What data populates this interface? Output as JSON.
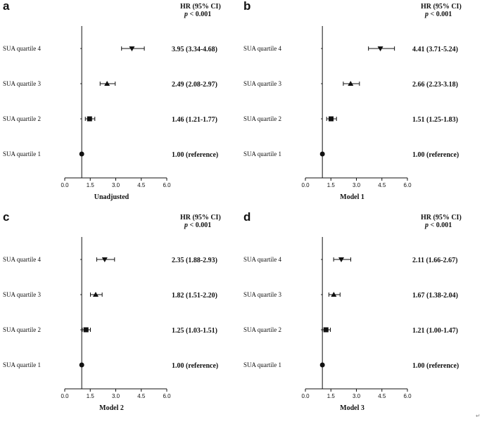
{
  "header": {
    "hr_label": "HR (95% CI)",
    "p_label": "p",
    "p_value": "< 0.001"
  },
  "rows": [
    "SUA quartile 4",
    "SUA quartile 3",
    "SUA quartile 2",
    "SUA quartile 1"
  ],
  "chart_data": [
    {
      "type": "forest",
      "panel": "a",
      "xlabel": "Unadjusted",
      "xlim": [
        0,
        6
      ],
      "xticks": [
        "0.0",
        "1.5",
        "3.0",
        "4.5",
        "6.0"
      ],
      "ref_line": 1.0,
      "rows": [
        {
          "label": "SUA quartile 4",
          "hr": 3.95,
          "lo": 3.34,
          "hi": 4.68,
          "marker": "triangle-down",
          "text": "3.95 (3.34-4.68)"
        },
        {
          "label": "SUA quartile 3",
          "hr": 2.49,
          "lo": 2.08,
          "hi": 2.97,
          "marker": "triangle-up",
          "text": "2.49 (2.08-2.97)"
        },
        {
          "label": "SUA quartile 2",
          "hr": 1.46,
          "lo": 1.21,
          "hi": 1.77,
          "marker": "square",
          "text": "1.46 (1.21-1.77)"
        },
        {
          "label": "SUA quartile 1",
          "hr": 1.0,
          "lo": 1.0,
          "hi": 1.0,
          "marker": "circle",
          "text": "1.00 (reference)"
        }
      ]
    },
    {
      "type": "forest",
      "panel": "b",
      "xlabel": "Model 1",
      "xlim": [
        0,
        6
      ],
      "xticks": [
        "0.0",
        "1.5",
        "3.0",
        "4.5",
        "6.0"
      ],
      "ref_line": 1.0,
      "rows": [
        {
          "label": "SUA quartile 4",
          "hr": 4.41,
          "lo": 3.71,
          "hi": 5.24,
          "marker": "triangle-down",
          "text": "4.41 (3.71-5.24)"
        },
        {
          "label": "SUA quartile 3",
          "hr": 2.66,
          "lo": 2.23,
          "hi": 3.18,
          "marker": "triangle-up",
          "text": "2.66 (2.23-3.18)"
        },
        {
          "label": "SUA quartile 2",
          "hr": 1.51,
          "lo": 1.25,
          "hi": 1.83,
          "marker": "square",
          "text": "1.51 (1.25-1.83)"
        },
        {
          "label": "SUA quartile 1",
          "hr": 1.0,
          "lo": 1.0,
          "hi": 1.0,
          "marker": "circle",
          "text": "1.00 (reference)"
        }
      ]
    },
    {
      "type": "forest",
      "panel": "c",
      "xlabel": "Model 2",
      "xlim": [
        0,
        6
      ],
      "xticks": [
        "0.0",
        "1.5",
        "3.0",
        "4.5",
        "6.0"
      ],
      "ref_line": 1.0,
      "rows": [
        {
          "label": "SUA quartile 4",
          "hr": 2.35,
          "lo": 1.88,
          "hi": 2.93,
          "marker": "triangle-down",
          "text": "2.35 (1.88-2.93)"
        },
        {
          "label": "SUA quartile 3",
          "hr": 1.82,
          "lo": 1.51,
          "hi": 2.2,
          "marker": "triangle-up",
          "text": "1.82 (1.51-2.20)"
        },
        {
          "label": "SUA quartile 2",
          "hr": 1.25,
          "lo": 1.03,
          "hi": 1.51,
          "marker": "square",
          "text": "1.25 (1.03-1.51)"
        },
        {
          "label": "SUA quartile 1",
          "hr": 1.0,
          "lo": 1.0,
          "hi": 1.0,
          "marker": "circle",
          "text": "1.00 (reference)"
        }
      ]
    },
    {
      "type": "forest",
      "panel": "d",
      "xlabel": "Model 3",
      "xlim": [
        0,
        6
      ],
      "xticks": [
        "0.0",
        "1.5",
        "3.0",
        "4.5",
        "6.0"
      ],
      "ref_line": 1.0,
      "rows": [
        {
          "label": "SUA quartile 4",
          "hr": 2.11,
          "lo": 1.66,
          "hi": 2.67,
          "marker": "triangle-down",
          "text": "2.11 (1.66-2.67)"
        },
        {
          "label": "SUA quartile 3",
          "hr": 1.67,
          "lo": 1.38,
          "hi": 2.04,
          "marker": "triangle-up",
          "text": "1.67 (1.38-2.04)"
        },
        {
          "label": "SUA quartile 2",
          "hr": 1.21,
          "lo": 1.0,
          "hi": 1.47,
          "marker": "square",
          "text": "1.21 (1.00-1.47)"
        },
        {
          "label": "SUA quartile 1",
          "hr": 1.0,
          "lo": 1.0,
          "hi": 1.0,
          "marker": "circle",
          "text": "1.00 (reference)"
        }
      ]
    }
  ],
  "corner_mark": "↵"
}
